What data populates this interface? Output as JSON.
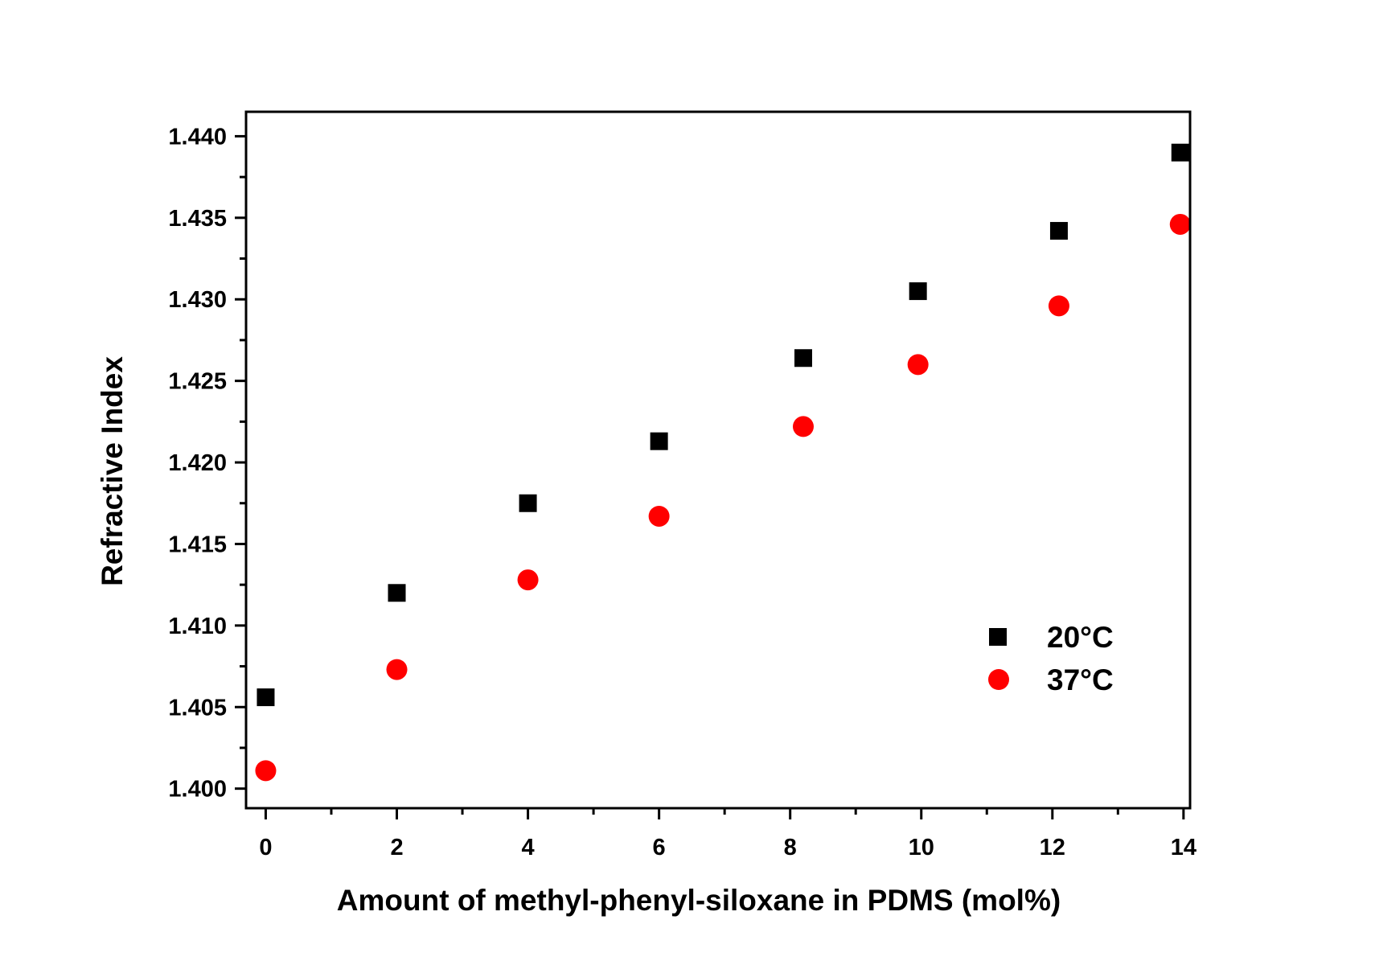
{
  "chart_data": {
    "type": "scatter",
    "xlabel": "Amount of methyl-phenyl-siloxane in PDMS (mol%)",
    "ylabel": "Refractive Index",
    "xlim": [
      -0.3,
      14.1
    ],
    "ylim": [
      1.3988,
      1.4415
    ],
    "x_ticks": [
      0,
      2,
      4,
      6,
      8,
      10,
      12,
      14
    ],
    "x_tick_labels": [
      "0",
      "2",
      "4",
      "6",
      "8",
      "10",
      "12",
      "14"
    ],
    "y_ticks": [
      1.4,
      1.405,
      1.41,
      1.415,
      1.42,
      1.425,
      1.43,
      1.435,
      1.44
    ],
    "y_tick_labels": [
      "1.400",
      "1.405",
      "1.410",
      "1.415",
      "1.420",
      "1.425",
      "1.430",
      "1.435",
      "1.440"
    ],
    "grid": false,
    "legend_position": "bottom-right",
    "series": [
      {
        "name": "20°C",
        "marker": "square",
        "color": "#000000",
        "x": [
          0,
          2,
          4,
          6,
          8.2,
          9.95,
          12.1,
          13.95
        ],
        "y": [
          1.4056,
          1.412,
          1.4175,
          1.4213,
          1.4264,
          1.4305,
          1.4342,
          1.439
        ]
      },
      {
        "name": "37°C",
        "marker": "circle",
        "color": "#ff0000",
        "x": [
          0,
          2,
          4,
          6,
          8.2,
          9.95,
          12.1,
          13.95
        ],
        "y": [
          1.4011,
          1.4073,
          1.4128,
          1.4167,
          1.4222,
          1.426,
          1.4296,
          1.4346
        ]
      }
    ]
  }
}
